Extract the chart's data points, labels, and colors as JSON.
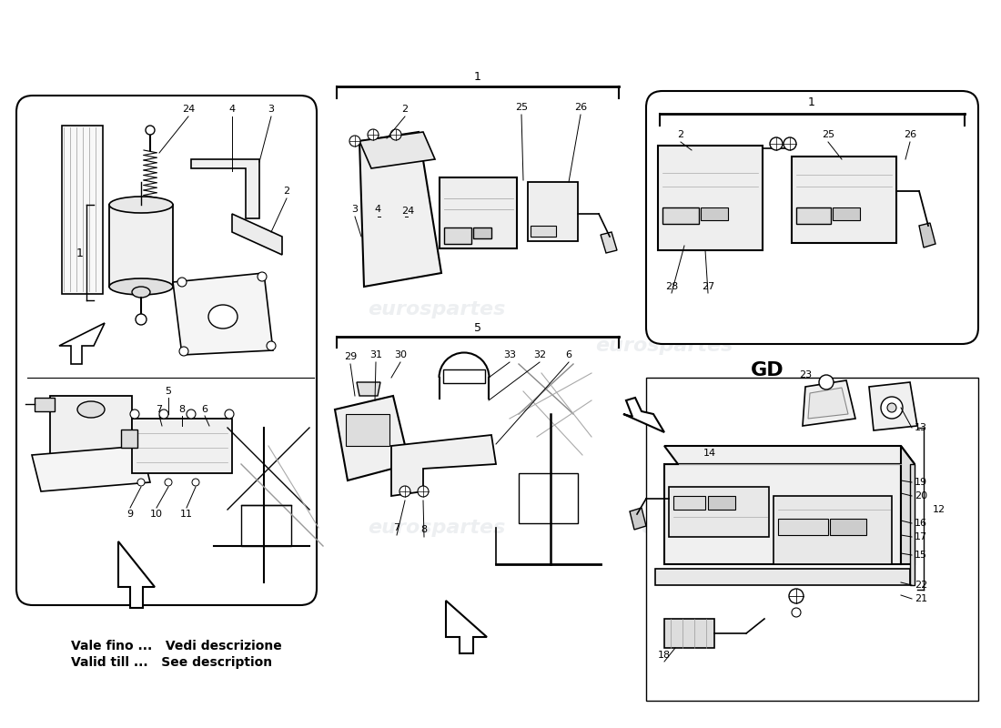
{
  "bg_color": "#ffffff",
  "watermark_text": "eurospartes",
  "watermark_color": "#c0c8d0",
  "watermark_alpha": 0.28,
  "footnote_line1": "Vale fino ...   Vedi descrizione",
  "footnote_line2": "Valid till ...   See description",
  "label_GD": "GD"
}
